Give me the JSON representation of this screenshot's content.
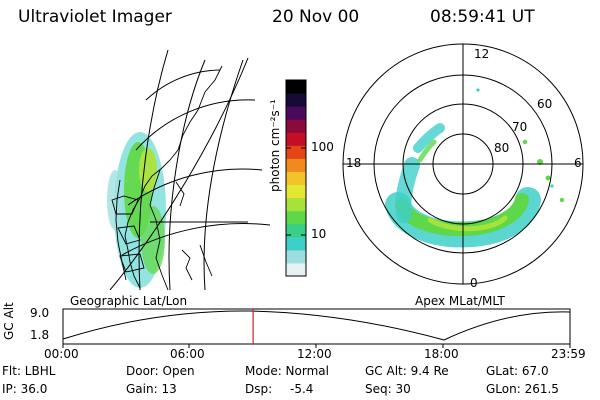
{
  "header": {
    "title": "Ultraviolet Imager",
    "date": "20 Nov 00",
    "time": "08:59:41 UT"
  },
  "colorbar": {
    "unit_label": "photon cm⁻²s⁻¹",
    "tick_labels": [
      "100",
      "10"
    ],
    "colors": [
      "#e8f2f2",
      "#9bdede",
      "#3ecfc8",
      "#38cf86",
      "#5ed84a",
      "#a7e23a",
      "#e3e633",
      "#f3c42a",
      "#f08a1f",
      "#e54514",
      "#c20f25",
      "#8a0a3c",
      "#4a0b5e",
      "#170a35",
      "#000000"
    ]
  },
  "left_panel": {
    "label": "Geographic Lat/Lon"
  },
  "right_panel": {
    "label": "Apex MLat/MLT",
    "lat_labels": [
      "60",
      "70",
      "80"
    ],
    "mlt_labels": [
      "12",
      "18",
      "6",
      "0"
    ]
  },
  "timeline": {
    "ylabel": "GC Alt",
    "y_ticks": [
      "9.0",
      "1.8"
    ],
    "x_ticks": [
      "00:00",
      "06:00",
      "12:00",
      "18:00",
      "23:59"
    ],
    "current_time_fraction": 0.375,
    "marker_color": "#cc2222"
  },
  "info": {
    "flt": "Flt: LBHL",
    "door": "Door: Open",
    "mode": "Mode: Normal",
    "gc_alt": "GC Alt: 9.4 Re",
    "glat": "GLat: 67.0",
    "ip": "IP: 36.0",
    "gain": "Gain: 13",
    "dsp_label": "Dsp:",
    "dsp_value": "-5.4",
    "seq": "Seq: 30",
    "glon": "GLon: 261.5"
  }
}
